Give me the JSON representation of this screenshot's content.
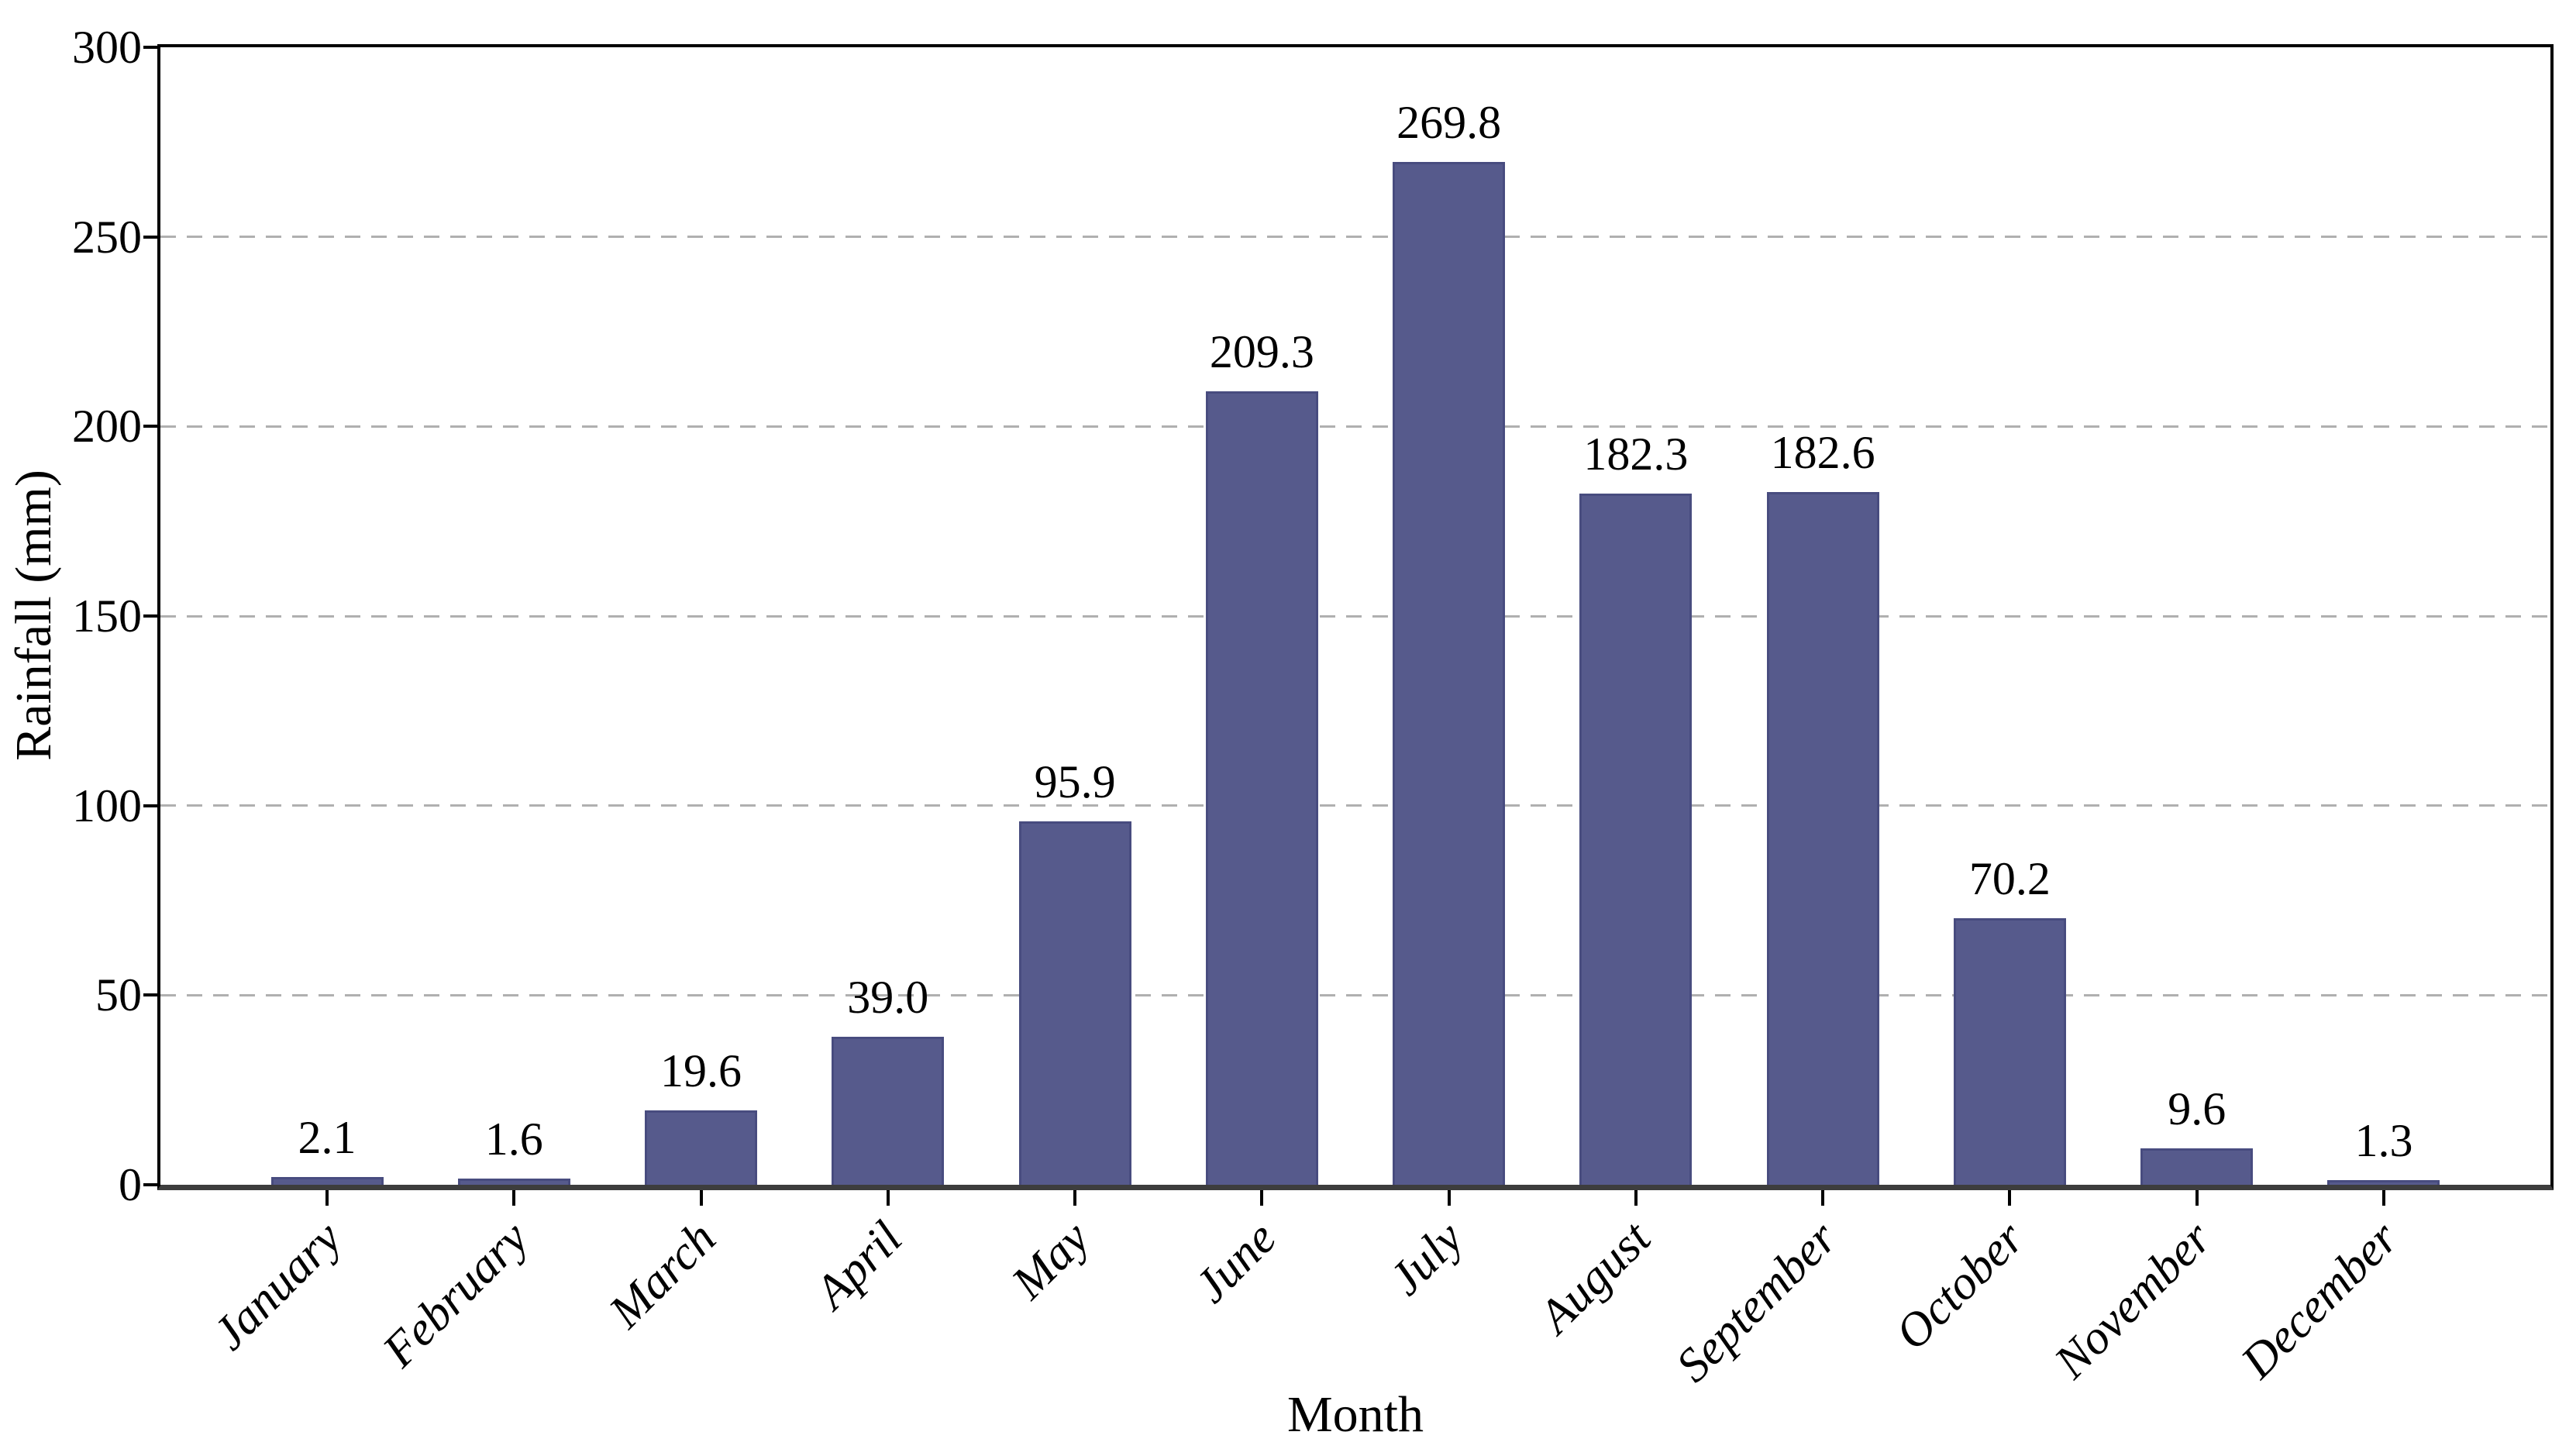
{
  "chart_data": {
    "type": "bar",
    "title": "",
    "xlabel": "Month",
    "ylabel": "Rainfall (mm)",
    "categories": [
      "January",
      "February",
      "March",
      "April",
      "May",
      "June",
      "July",
      "August",
      "September",
      "October",
      "November",
      "December"
    ],
    "values": [
      2.1,
      1.6,
      19.6,
      39.0,
      95.9,
      209.3,
      269.8,
      182.3,
      182.6,
      70.2,
      9.6,
      1.3
    ],
    "value_label_format": "one-decimal",
    "y_ticks": [
      0,
      50,
      100,
      150,
      200,
      250,
      300
    ],
    "ylim": [
      0,
      300
    ],
    "grid": "horizontal-dashed",
    "legend_position": "none",
    "x_tick_label_style": "italic, rotated 45deg",
    "colors": {
      "bar_fill": "#565a8c",
      "bar_edge": "#484c7f",
      "gridline": "#b0b0b0",
      "axis_frame": "#000000",
      "bottom_spine": "#3d3d3d",
      "text": "#000000",
      "background": "#ffffff"
    }
  }
}
